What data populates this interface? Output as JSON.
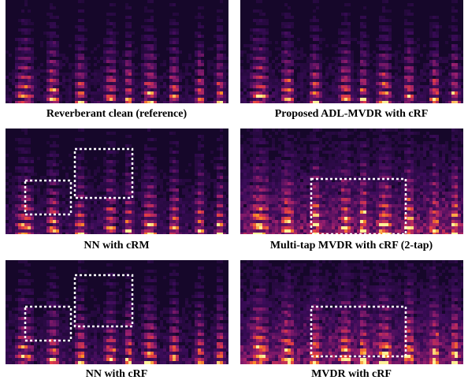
{
  "figure": {
    "panels": [
      {
        "caption": "Reverberant clean (reference)"
      },
      {
        "caption": "Proposed ADL-MVDR with cRF"
      },
      {
        "caption": "NN with cRM"
      },
      {
        "caption": "Multi-tap MVDR with cRF (2-tap)"
      },
      {
        "caption": "NN with cRF"
      },
      {
        "caption": "MVDR with cRF"
      }
    ]
  }
}
